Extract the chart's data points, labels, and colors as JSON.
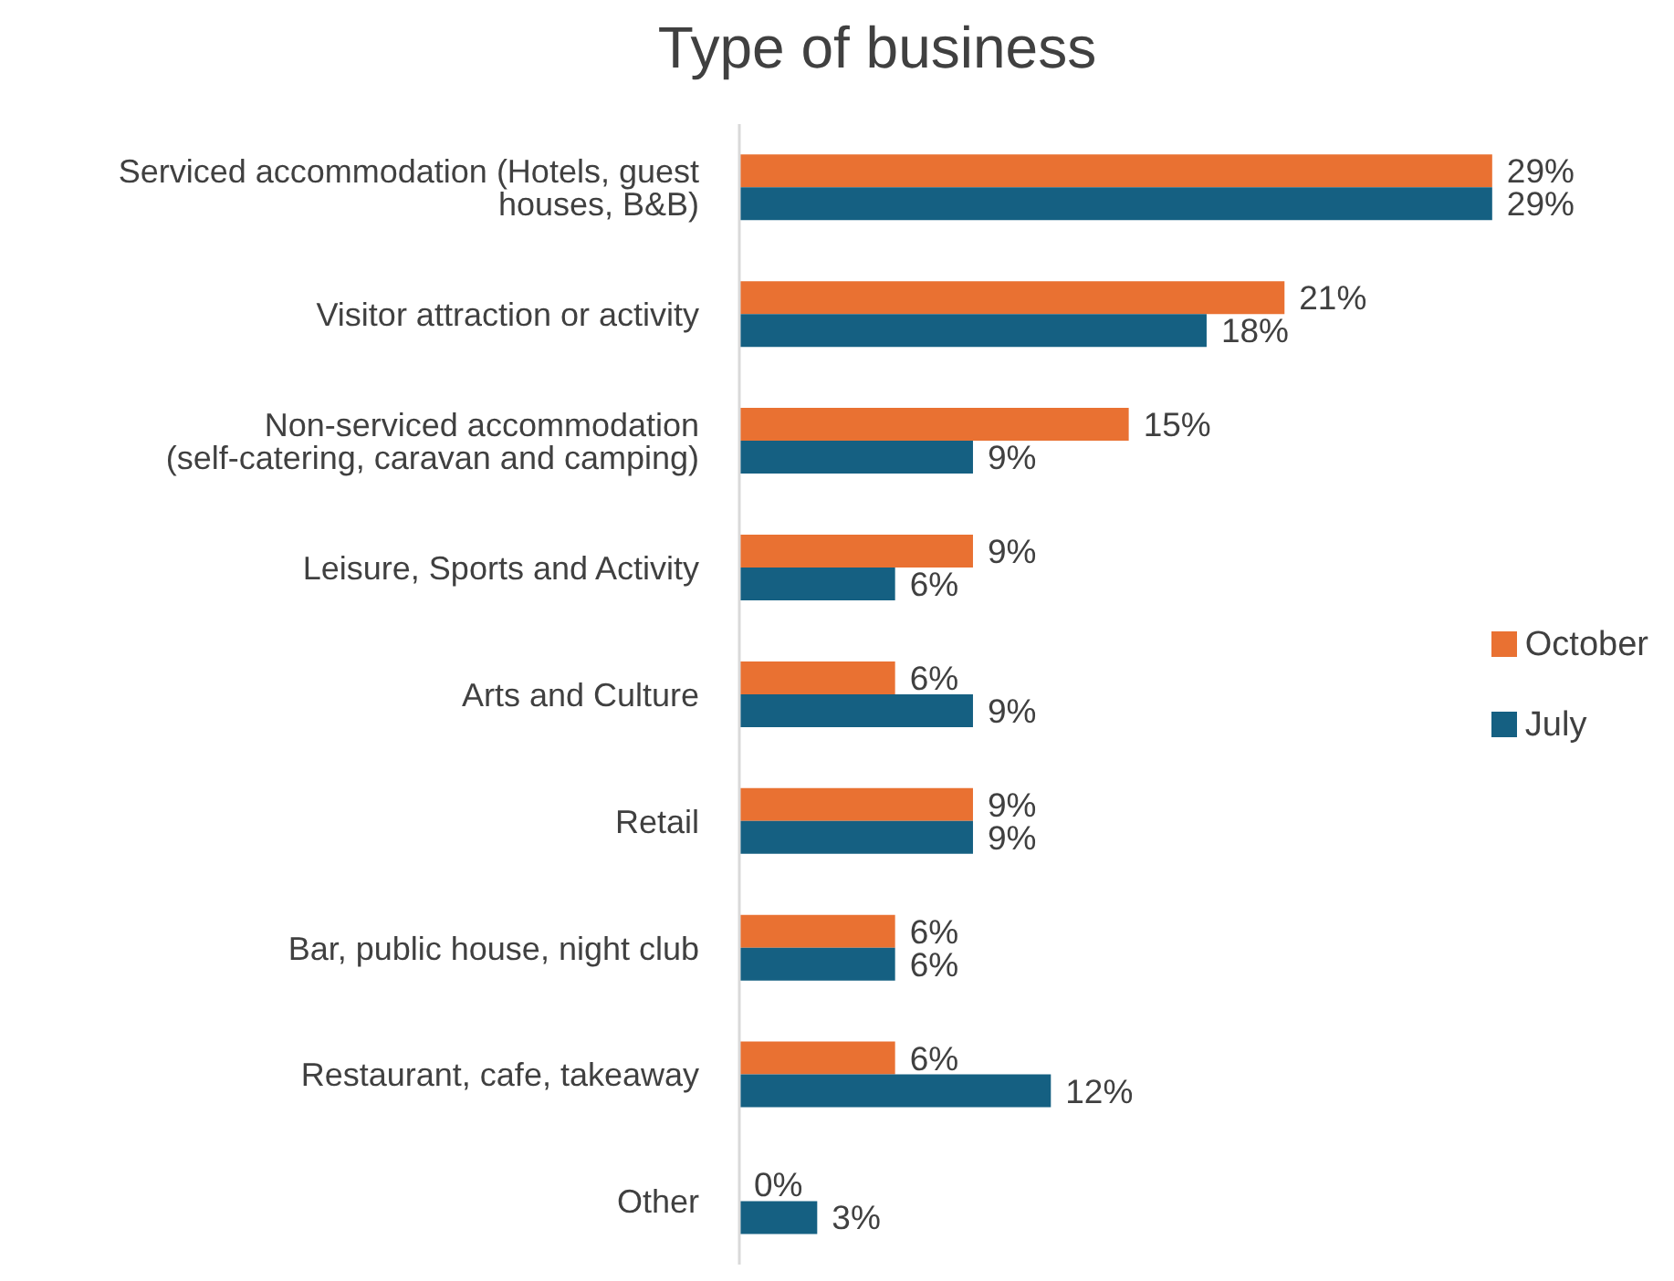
{
  "chart_data": {
    "type": "bar",
    "orientation": "horizontal",
    "title": "Type of business",
    "categories": [
      "Serviced accommodation (Hotels, guest houses, B&B)",
      "Visitor attraction or activity",
      "Non-serviced accommodation (self-catering, caravan and camping)",
      "Leisure, Sports and Activity",
      "Arts and Culture",
      "Retail",
      "Bar, public house, night club",
      "Restaurant, cafe, takeaway",
      "Other"
    ],
    "series": [
      {
        "name": "October",
        "color": "#e97132",
        "values": [
          29,
          21,
          15,
          9,
          6,
          9,
          6,
          6,
          0
        ],
        "value_labels": [
          "29%",
          "21%",
          "15%",
          "9%",
          "6%",
          "9%",
          "6%",
          "6%",
          "0%"
        ]
      },
      {
        "name": "July",
        "color": "#156082",
        "values": [
          29,
          18,
          9,
          6,
          9,
          9,
          6,
          12,
          3
        ],
        "value_labels": [
          "29%",
          "18%",
          "9%",
          "6%",
          "9%",
          "9%",
          "6%",
          "12%",
          "3%"
        ]
      }
    ],
    "legend": "right",
    "grid": false
  }
}
